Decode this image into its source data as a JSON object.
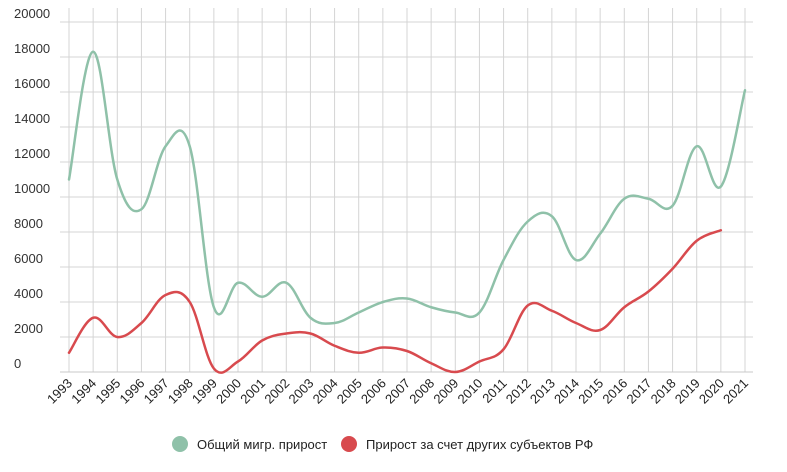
{
  "chart_data": {
    "type": "line",
    "x": [
      "1993",
      "1994",
      "1995",
      "1996",
      "1997",
      "1998",
      "1999",
      "2000",
      "2001",
      "2002",
      "2003",
      "2004",
      "2005",
      "2006",
      "2007",
      "2008",
      "2009",
      "2010",
      "2011",
      "2012",
      "2013",
      "2014",
      "2015",
      "2016",
      "2017",
      "2018",
      "2019",
      "2020",
      "2021"
    ],
    "series": [
      {
        "name": "Общий мигр. прирост",
        "color": "#8fc1a9",
        "values": [
          11000,
          18300,
          11000,
          9300,
          12900,
          12900,
          3700,
          5100,
          4300,
          5100,
          3100,
          2800,
          3400,
          4000,
          4200,
          3700,
          3400,
          3400,
          6400,
          8600,
          8900,
          6400,
          7900,
          9900,
          9900,
          9500,
          12900,
          10600,
          16100
        ]
      },
      {
        "name": "Прирост за счет других субъектов РФ",
        "color": "#d84a4e",
        "values": [
          1100,
          3100,
          2000,
          2800,
          4400,
          4000,
          200,
          600,
          1800,
          2200,
          2200,
          1500,
          1100,
          1400,
          1200,
          500,
          0,
          600,
          1300,
          3800,
          3500,
          2800,
          2400,
          3700,
          4600,
          5900,
          7500,
          8100,
          null
        ]
      }
    ],
    "title": "",
    "xlabel": "",
    "ylabel": "",
    "ylim": [
      0,
      20000
    ],
    "yticks": [
      "0",
      "2000",
      "4000",
      "6000",
      "8000",
      "10000",
      "12000",
      "14000",
      "16000",
      "18000",
      "20000"
    ],
    "grid": true,
    "legend_position": "bottom"
  }
}
